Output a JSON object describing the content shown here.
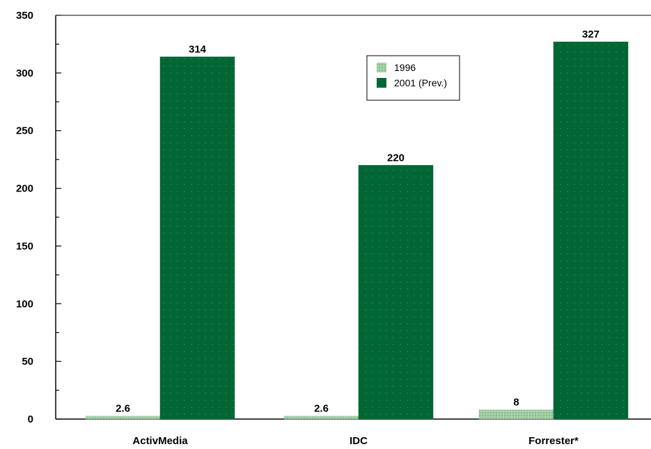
{
  "chart_data": {
    "type": "bar",
    "title": "",
    "xlabel": "",
    "ylabel": "",
    "categories": [
      "ActivMedia",
      "IDC",
      "Forrester*"
    ],
    "series": [
      {
        "name": "1996",
        "values": [
          2.6,
          2.6,
          8
        ],
        "labels": [
          "2.6",
          "2.6",
          "8"
        ],
        "color": "#9fc9a4"
      },
      {
        "name": "2001 (Prev.)",
        "values": [
          314,
          220,
          327
        ],
        "labels": [
          "314",
          "220",
          "327"
        ],
        "color": "#006633"
      }
    ],
    "ylim": [
      0,
      350
    ],
    "yticks": [
      0,
      50,
      100,
      150,
      200,
      250,
      300,
      350
    ],
    "grid": false,
    "legend_position": "top-center"
  }
}
